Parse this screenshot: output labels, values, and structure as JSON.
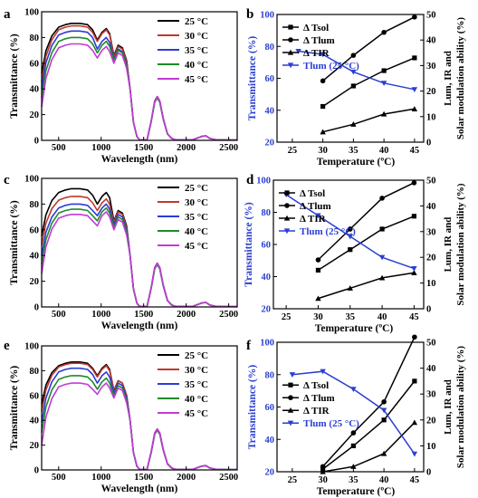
{
  "figure": {
    "panel_letters": [
      "a",
      "b",
      "c",
      "d",
      "e",
      "f"
    ]
  },
  "colors": {
    "spectra": [
      "#000000",
      "#c0392b",
      "#2b3bd6",
      "#1e8a2a",
      "#c23bd6"
    ],
    "blue_series": "#2a3fd1",
    "black_series": "#000000"
  },
  "chart_data": [
    {
      "panel": "a",
      "type": "line",
      "xlabel": "Wavelength (nm)",
      "ylabel": "Transmittance (%)",
      "xlim": [
        300,
        2600
      ],
      "ylim": [
        0,
        100
      ],
      "xticks": [
        500,
        1000,
        1500,
        2000,
        2500
      ],
      "yticks": [
        0,
        20,
        40,
        60,
        80,
        100
      ],
      "legend_position": "top-right",
      "series": [
        {
          "name": "25 °C",
          "plateau": 91,
          "bump1": 87,
          "bump2": 74,
          "start": 52,
          "peak": 34
        },
        {
          "name": "30 °C",
          "plateau": 89,
          "bump1": 86,
          "bump2": 73,
          "start": 46,
          "peak": 34
        },
        {
          "name": "35 °C",
          "plateau": 85,
          "bump1": 80,
          "bump2": 71,
          "start": 40,
          "peak": 33
        },
        {
          "name": "40 °C",
          "plateau": 80,
          "bump1": 77,
          "bump2": 70,
          "start": 33,
          "peak": 33
        },
        {
          "name": "45 °C",
          "plateau": 75,
          "bump1": 73,
          "bump2": 68,
          "start": 26,
          "peak": 34
        }
      ]
    },
    {
      "panel": "b",
      "type": "line",
      "xlabel": "Temperature (ºC)",
      "ylabel": "Transmittance (%)",
      "y2label": "Solar modulation ability (%)",
      "y2label_2": "Lum, IR and",
      "xlim": [
        22.5,
        46.5
      ],
      "ylim": [
        20,
        100
      ],
      "y2lim": [
        0,
        50
      ],
      "xticks": [
        25,
        30,
        35,
        40,
        45
      ],
      "yticks": [
        20,
        40,
        60,
        80,
        100
      ],
      "y2ticks": [
        0,
        10,
        20,
        30,
        40,
        50
      ],
      "legend_position": "top-left",
      "series": [
        {
          "name": "Δ Tsol",
          "axis": "right",
          "marker": "square",
          "x": [
            30,
            35,
            40,
            45
          ],
          "values": [
            14,
            22,
            28,
            33
          ]
        },
        {
          "name": "Δ Tlum",
          "axis": "right",
          "marker": "circle",
          "x": [
            30,
            35,
            40,
            45
          ],
          "values": [
            24,
            34,
            43,
            49
          ]
        },
        {
          "name": "Δ TIR",
          "axis": "right",
          "marker": "triangle",
          "x": [
            30,
            35,
            40,
            45
          ],
          "values": [
            4,
            7,
            11,
            13
          ]
        },
        {
          "name": "Tlum (25 °C)",
          "axis": "left",
          "marker": "triangle-down",
          "x": [
            26,
            30,
            35,
            40,
            45
          ],
          "values": [
            77,
            75,
            64,
            57,
            53
          ]
        }
      ]
    },
    {
      "panel": "c",
      "type": "line",
      "xlabel": "Wavelength (nm)",
      "ylabel": "Transmittance (%)",
      "xlim": [
        300,
        2600
      ],
      "ylim": [
        0,
        100
      ],
      "xticks": [
        500,
        1000,
        1500,
        2000,
        2500
      ],
      "yticks": [
        0,
        20,
        40,
        60,
        80,
        100
      ],
      "legend_position": "right",
      "series": [
        {
          "name": "25 °C",
          "plateau": 92,
          "bump1": 89,
          "bump2": 75,
          "start": 55,
          "peak": 34
        },
        {
          "name": "30 °C",
          "plateau": 86,
          "bump1": 84,
          "bump2": 74,
          "start": 48,
          "peak": 34
        },
        {
          "name": "35 °C",
          "plateau": 80,
          "bump1": 80,
          "bump2": 72,
          "start": 40,
          "peak": 33
        },
        {
          "name": "40 °C",
          "plateau": 76,
          "bump1": 77,
          "bump2": 70,
          "start": 33,
          "peak": 33
        },
        {
          "name": "45 °C",
          "plateau": 72,
          "bump1": 74,
          "bump2": 68,
          "start": 26,
          "peak": 34
        }
      ]
    },
    {
      "panel": "d",
      "type": "line",
      "xlabel": "Temperature (ºC)",
      "ylabel": "Transmittance (%)",
      "y2label": "Solar modulation ability (%)",
      "y2label_2": "Lum, IR and",
      "xlim": [
        23,
        46.5
      ],
      "ylim": [
        20,
        100
      ],
      "y2lim": [
        0,
        50
      ],
      "xticks": [
        25,
        30,
        35,
        40,
        45
      ],
      "yticks": [
        20,
        40,
        60,
        80,
        100
      ],
      "y2ticks": [
        0,
        10,
        20,
        30,
        40,
        50
      ],
      "legend_position": "top-left",
      "series": [
        {
          "name": "Δ Tsol",
          "axis": "right",
          "marker": "square",
          "x": [
            30,
            35,
            40,
            45
          ],
          "values": [
            15,
            23,
            31,
            36
          ]
        },
        {
          "name": "Δ Tlum",
          "axis": "right",
          "marker": "circle",
          "x": [
            30,
            35,
            40,
            45
          ],
          "values": [
            19,
            31,
            43,
            49
          ]
        },
        {
          "name": "Δ TIR",
          "axis": "right",
          "marker": "triangle",
          "x": [
            30,
            35,
            40,
            45
          ],
          "values": [
            4,
            8,
            12,
            14
          ]
        },
        {
          "name": "Tlum (25 °C)",
          "axis": "left",
          "marker": "triangle-down",
          "x": [
            25,
            30,
            35,
            40,
            45
          ],
          "values": [
            91,
            78,
            65,
            52,
            45
          ]
        }
      ]
    },
    {
      "panel": "e",
      "type": "line",
      "xlabel": "Wavelength (nm)",
      "ylabel": "Transmittance (%)",
      "xlim": [
        300,
        2600
      ],
      "ylim": [
        0,
        100
      ],
      "xticks": [
        500,
        1000,
        1500,
        2000,
        2500
      ],
      "yticks": [
        0,
        20,
        40,
        60,
        80,
        100
      ],
      "legend_position": "right",
      "series": [
        {
          "name": "25 °C",
          "plateau": 87,
          "bump1": 85,
          "bump2": 72,
          "start": 53,
          "peak": 33
        },
        {
          "name": "30 °C",
          "plateau": 86,
          "bump1": 84,
          "bump2": 72,
          "start": 47,
          "peak": 33
        },
        {
          "name": "35 °C",
          "plateau": 82,
          "bump1": 79,
          "bump2": 70,
          "start": 38,
          "peak": 32
        },
        {
          "name": "40 °C",
          "plateau": 76,
          "bump1": 74,
          "bump2": 68,
          "start": 30,
          "peak": 32
        },
        {
          "name": "45 °C",
          "plateau": 70,
          "bump1": 70,
          "bump2": 66,
          "start": 20,
          "peak": 33
        }
      ]
    },
    {
      "panel": "f",
      "type": "line",
      "xlabel": "Temperature (ºC)",
      "ylabel": "Transmittance (%)",
      "y2label": "Solar modulation ability (%)",
      "y2label_2": "Lum, IR and",
      "xlim": [
        22.5,
        46.5
      ],
      "ylim": [
        20,
        100
      ],
      "y2lim": [
        0,
        50
      ],
      "xticks": [
        25,
        30,
        35,
        40,
        45
      ],
      "yticks": [
        20,
        40,
        60,
        80,
        100
      ],
      "y2ticks": [
        0,
        10,
        20,
        30,
        40,
        50
      ],
      "legend_position": "left",
      "series": [
        {
          "name": "Δ Tsol",
          "axis": "right",
          "marker": "square",
          "x": [
            30,
            35,
            40,
            45
          ],
          "values": [
            1,
            10,
            20,
            35
          ]
        },
        {
          "name": "Δ Tlum",
          "axis": "right",
          "marker": "circle",
          "x": [
            30,
            35,
            40,
            45
          ],
          "values": [
            2,
            15,
            27,
            52
          ]
        },
        {
          "name": "Δ TIR",
          "axis": "right",
          "marker": "triangle",
          "x": [
            30,
            35,
            40,
            45
          ],
          "values": [
            0,
            2,
            7,
            19
          ]
        },
        {
          "name": "Tlum (25 °C)",
          "axis": "left",
          "marker": "triangle-down",
          "x": [
            25,
            30,
            35,
            40,
            45
          ],
          "values": [
            80,
            82,
            71,
            58,
            31
          ]
        }
      ]
    }
  ]
}
